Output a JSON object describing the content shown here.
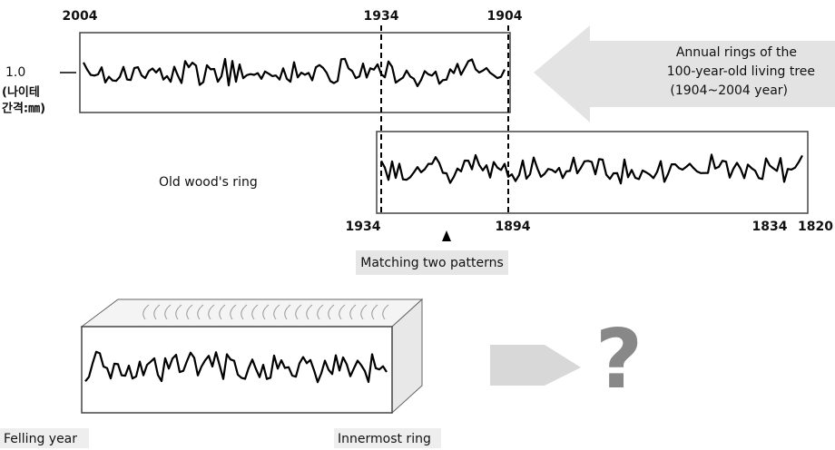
{
  "top_panel": {
    "year_labels": [
      "2004",
      "1934",
      "1904"
    ],
    "y_label": "1.0",
    "unit_label": [
      "(나이테",
      "간격:㎜)"
    ],
    "arrow_text": [
      "Annual rings of the",
      "100-year-old living tree",
      "(1904~2004 year)"
    ]
  },
  "middle_panel": {
    "label": "Old wood's ring",
    "year_labels": [
      "1934",
      "1894",
      "1834",
      "1820"
    ],
    "caption": "Matching two patterns"
  },
  "bottom_panel": {
    "question": "?",
    "left_label": "Felling year",
    "right_label": "Innermost ring"
  }
}
